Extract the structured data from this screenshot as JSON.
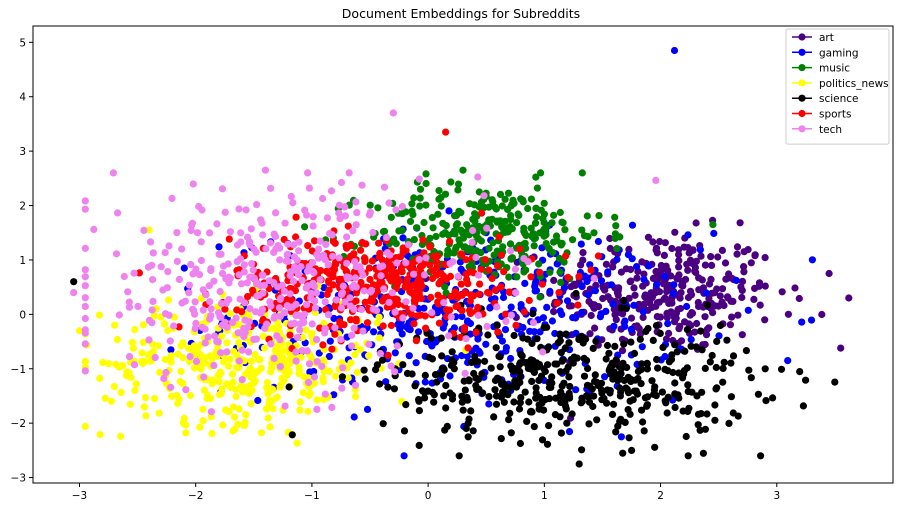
{
  "chart_data": {
    "type": "scatter",
    "title": "Document Embeddings for Subreddits",
    "xlabel": "",
    "ylabel": "",
    "xlim": [
      -3.4,
      4.0
    ],
    "ylim": [
      -3.1,
      5.3
    ],
    "xticks": [
      -3,
      -2,
      -1,
      0,
      1,
      2,
      3
    ],
    "yticks": [
      -3,
      -2,
      -1,
      0,
      1,
      2,
      3,
      4,
      5
    ],
    "grid": false,
    "legend_position": "top-right",
    "series": [
      {
        "name": "art",
        "color": "#4b0082",
        "center": [
          2.0,
          0.4
        ],
        "spread": [
          0.5,
          0.55
        ],
        "count": 330,
        "points": [
          [
            3.62,
            0.3
          ],
          [
            3.55,
            -0.62
          ],
          [
            3.45,
            0.75
          ],
          [
            3.1,
            0.0
          ]
        ]
      },
      {
        "name": "gaming",
        "color": "#0000ff",
        "center": [
          0.3,
          0.0
        ],
        "spread": [
          1.0,
          0.75
        ],
        "count": 430,
        "points": [
          [
            2.12,
            4.85
          ]
        ]
      },
      {
        "name": "music",
        "color": "#008000",
        "center": [
          0.5,
          1.5
        ],
        "spread": [
          0.5,
          0.45
        ],
        "count": 300,
        "points": [
          [
            0.3,
            2.65
          ],
          [
            2.45,
            1.65
          ]
        ]
      },
      {
        "name": "politics_news",
        "color": "#ffff00",
        "center": [
          -1.6,
          -0.9
        ],
        "spread": [
          0.6,
          0.55
        ],
        "count": 380,
        "points": [
          [
            -3.0,
            -0.3
          ],
          [
            -2.4,
            1.55
          ]
        ]
      },
      {
        "name": "science",
        "color": "#000000",
        "center": [
          1.2,
          -1.2
        ],
        "spread": [
          0.8,
          0.55
        ],
        "count": 450,
        "points": [
          [
            -3.05,
            0.6
          ],
          [
            1.3,
            -2.75
          ],
          [
            2.9,
            -1.0
          ]
        ]
      },
      {
        "name": "sports",
        "color": "#ff0000",
        "center": [
          -0.4,
          0.55
        ],
        "spread": [
          0.65,
          0.45
        ],
        "count": 420,
        "points": [
          [
            0.15,
            3.35
          ]
        ]
      },
      {
        "name": "tech",
        "color": "#ee82ee",
        "center": [
          -1.3,
          0.5
        ],
        "spread": [
          0.9,
          0.9
        ],
        "count": 430,
        "points": [
          [
            -0.3,
            3.7
          ],
          [
            -1.4,
            2.65
          ],
          [
            -3.05,
            0.4
          ]
        ]
      }
    ]
  }
}
